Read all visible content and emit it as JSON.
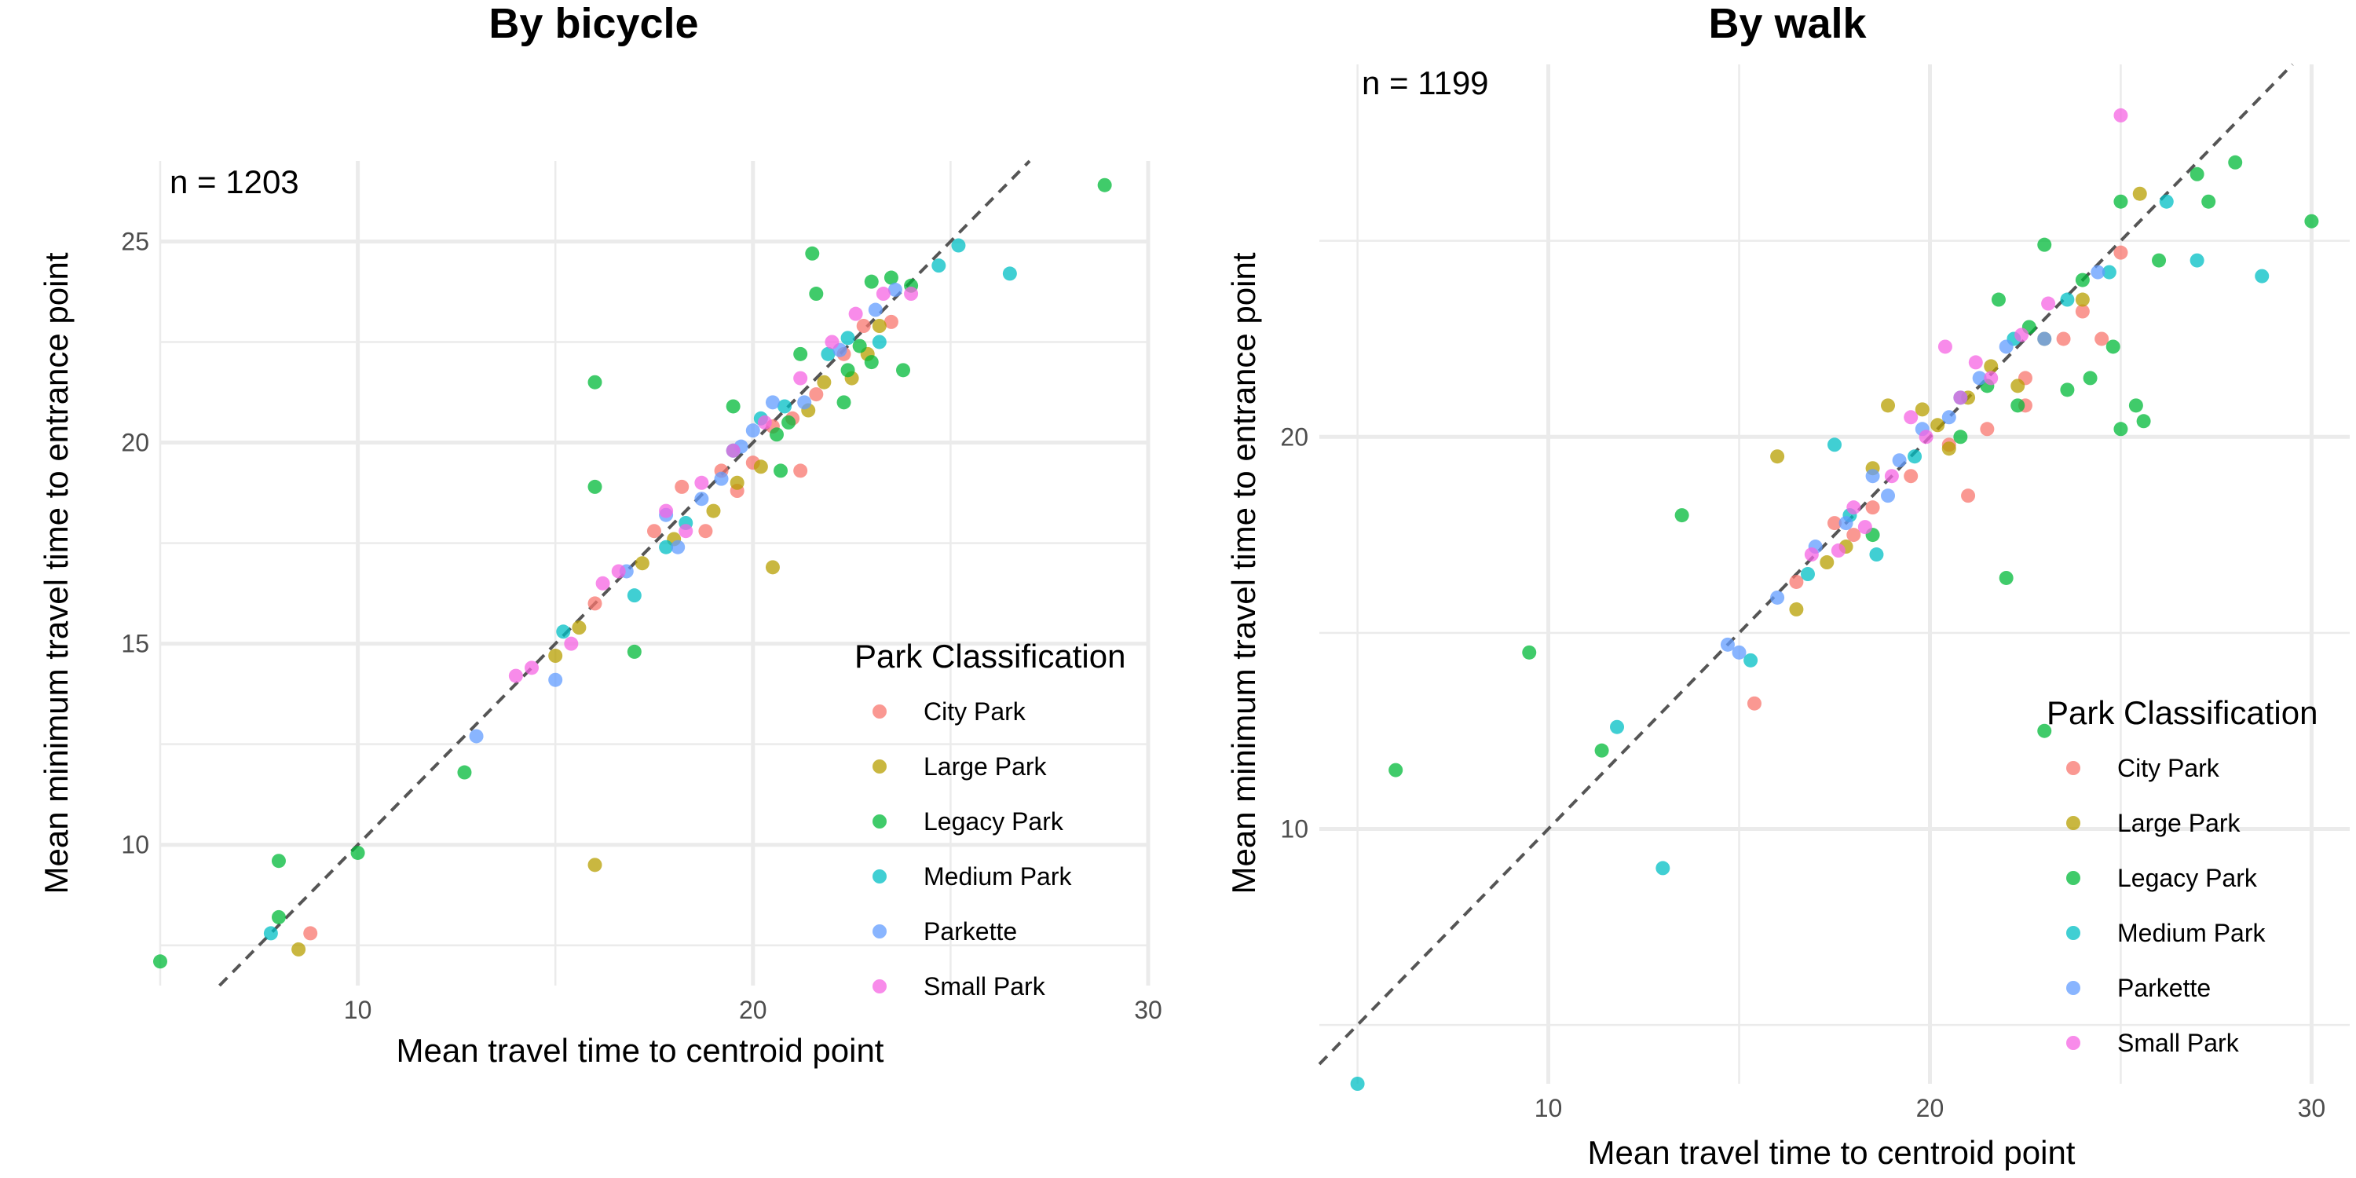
{
  "chart_data": [
    {
      "type": "scatter",
      "title": "By bicycle",
      "xlabel": "Mean travel time to centroid point",
      "ylabel": "Mean minimum travel time to entrance point",
      "annotation": "n = 1203",
      "xlim": [
        5,
        30
      ],
      "ylim": [
        6.5,
        27
      ],
      "x_ticks": [
        10,
        20,
        30
      ],
      "y_ticks": [
        10,
        15,
        20,
        25
      ],
      "grid": true,
      "reference_line": "y = x (dashed)",
      "legend": {
        "title": "Park Classification",
        "placement": "right-inside",
        "entries": [
          "City Park",
          "Large Park",
          "Legacy Park",
          "Medium Park",
          "Parkette",
          "Small Park"
        ]
      },
      "series": [
        {
          "name": "City Park",
          "color": "#F8766D",
          "points": [
            [
              8.8,
              7.8
            ],
            [
              17.5,
              17.8
            ],
            [
              18.2,
              18.9
            ],
            [
              19.2,
              19.3
            ],
            [
              20.0,
              19.5
            ],
            [
              20.5,
              20.4
            ],
            [
              21.0,
              20.6
            ],
            [
              21.6,
              21.2
            ],
            [
              22.3,
              22.2
            ],
            [
              22.8,
              22.9
            ],
            [
              18.8,
              17.8
            ],
            [
              21.2,
              19.3
            ],
            [
              16.0,
              16.0
            ],
            [
              23.5,
              23.0
            ],
            [
              19.6,
              18.8
            ]
          ]
        },
        {
          "name": "Large Park",
          "color": "#B79F00",
          "points": [
            [
              8.5,
              7.4
            ],
            [
              15.0,
              14.7
            ],
            [
              16.0,
              9.5
            ],
            [
              20.5,
              16.9
            ],
            [
              18.0,
              17.6
            ],
            [
              19.0,
              18.3
            ],
            [
              20.2,
              19.4
            ],
            [
              21.4,
              20.8
            ],
            [
              22.5,
              21.6
            ],
            [
              23.2,
              22.9
            ],
            [
              17.2,
              17.0
            ],
            [
              21.8,
              21.5
            ],
            [
              15.6,
              15.4
            ],
            [
              19.6,
              19.0
            ],
            [
              22.9,
              22.2
            ]
          ]
        },
        {
          "name": "Legacy Park",
          "color": "#00BA38",
          "points": [
            [
              5.0,
              7.1
            ],
            [
              8.0,
              9.6
            ],
            [
              8.0,
              8.2
            ],
            [
              10.0,
              9.8
            ],
            [
              12.7,
              11.8
            ],
            [
              16.0,
              21.5
            ],
            [
              16.0,
              18.9
            ],
            [
              17.0,
              14.8
            ],
            [
              21.5,
              24.7
            ],
            [
              21.6,
              23.7
            ],
            [
              23.0,
              24.0
            ],
            [
              23.5,
              24.1
            ],
            [
              24.0,
              23.9
            ],
            [
              28.9,
              26.4
            ],
            [
              23.8,
              21.8
            ],
            [
              22.4,
              21.8
            ],
            [
              20.9,
              20.5
            ],
            [
              19.5,
              20.9
            ],
            [
              20.7,
              19.3
            ],
            [
              22.3,
              21.0
            ],
            [
              23.0,
              22.0
            ],
            [
              21.2,
              22.2
            ],
            [
              22.7,
              22.4
            ],
            [
              20.6,
              20.2
            ]
          ]
        },
        {
          "name": "Medium Park",
          "color": "#00BFC4",
          "points": [
            [
              7.8,
              7.8
            ],
            [
              15.2,
              15.3
            ],
            [
              17.0,
              16.2
            ],
            [
              18.3,
              18.0
            ],
            [
              19.5,
              19.8
            ],
            [
              20.8,
              20.9
            ],
            [
              21.9,
              22.2
            ],
            [
              23.2,
              22.5
            ],
            [
              24.7,
              24.4
            ],
            [
              25.2,
              24.9
            ],
            [
              26.5,
              24.2
            ],
            [
              17.8,
              17.4
            ],
            [
              20.2,
              20.6
            ],
            [
              22.4,
              22.6
            ]
          ]
        },
        {
          "name": "Parkette",
          "color": "#619CFF",
          "points": [
            [
              13.0,
              12.7
            ],
            [
              15.0,
              14.1
            ],
            [
              16.8,
              16.8
            ],
            [
              17.8,
              18.2
            ],
            [
              18.7,
              18.6
            ],
            [
              19.7,
              19.9
            ],
            [
              20.0,
              20.3
            ],
            [
              20.5,
              21.0
            ],
            [
              21.3,
              21.0
            ],
            [
              22.2,
              22.3
            ],
            [
              23.1,
              23.3
            ],
            [
              23.6,
              23.8
            ],
            [
              19.2,
              19.1
            ],
            [
              18.1,
              17.4
            ]
          ]
        },
        {
          "name": "Small Park",
          "color": "#F564E3",
          "points": [
            [
              14.0,
              14.2
            ],
            [
              14.4,
              14.4
            ],
            [
              15.4,
              15.0
            ],
            [
              16.2,
              16.5
            ],
            [
              16.6,
              16.8
            ],
            [
              17.8,
              18.3
            ],
            [
              18.7,
              19.0
            ],
            [
              19.5,
              19.8
            ],
            [
              20.3,
              20.5
            ],
            [
              21.2,
              21.6
            ],
            [
              22.0,
              22.5
            ],
            [
              22.6,
              23.2
            ],
            [
              23.3,
              23.7
            ],
            [
              24.0,
              23.7
            ],
            [
              18.3,
              17.8
            ]
          ]
        }
      ]
    },
    {
      "type": "scatter",
      "title": "By walk",
      "xlabel": "Mean travel time to centroid point",
      "ylabel": "Mean minimum travel time to entrance point",
      "annotation": "n = 1199",
      "xlim": [
        4,
        31
      ],
      "ylim": [
        3.5,
        29.5
      ],
      "x_ticks": [
        10,
        20,
        30
      ],
      "y_ticks": [
        10,
        20
      ],
      "grid": true,
      "reference_line": "y = x (dashed)",
      "legend": {
        "title": "Park Classification",
        "placement": "right-inside",
        "entries": [
          "City Park",
          "Large Park",
          "Legacy Park",
          "Medium Park",
          "Parkette",
          "Small Park"
        ]
      },
      "series": [
        {
          "name": "City Park",
          "color": "#F8766D",
          "points": [
            [
              15.4,
              13.2
            ],
            [
              16.5,
              16.3
            ],
            [
              17.5,
              17.8
            ],
            [
              18.5,
              18.2
            ],
            [
              19.5,
              19.0
            ],
            [
              20.5,
              19.8
            ],
            [
              21.5,
              20.2
            ],
            [
              22.5,
              21.5
            ],
            [
              23.5,
              22.5
            ],
            [
              24.5,
              22.5
            ],
            [
              25.0,
              24.7
            ],
            [
              21.0,
              18.5
            ],
            [
              22.5,
              20.8
            ],
            [
              18.0,
              17.5
            ],
            [
              24.0,
              23.2
            ]
          ]
        },
        {
          "name": "Large Park",
          "color": "#B79F00",
          "points": [
            [
              16.0,
              19.5
            ],
            [
              16.5,
              15.6
            ],
            [
              17.8,
              17.2
            ],
            [
              18.9,
              20.8
            ],
            [
              19.8,
              20.7
            ],
            [
              20.5,
              19.7
            ],
            [
              21.0,
              21.0
            ],
            [
              21.6,
              21.8
            ],
            [
              22.3,
              21.3
            ],
            [
              23.0,
              22.5
            ],
            [
              24.0,
              23.5
            ],
            [
              25.5,
              26.2
            ],
            [
              18.5,
              19.2
            ],
            [
              20.2,
              20.3
            ],
            [
              17.3,
              16.8
            ]
          ]
        },
        {
          "name": "Legacy Park",
          "color": "#00BA38",
          "points": [
            [
              6.0,
              11.5
            ],
            [
              9.5,
              14.5
            ],
            [
              11.4,
              12.0
            ],
            [
              13.5,
              18.0
            ],
            [
              18.5,
              17.5
            ],
            [
              22.0,
              16.4
            ],
            [
              23.0,
              12.5
            ],
            [
              23.0,
              24.9
            ],
            [
              25.0,
              26.0
            ],
            [
              25.0,
              20.2
            ],
            [
              25.6,
              20.4
            ],
            [
              25.4,
              20.8
            ],
            [
              27.0,
              26.7
            ],
            [
              27.3,
              26.0
            ],
            [
              28.0,
              27.0
            ],
            [
              30.0,
              25.5
            ],
            [
              24.0,
              24.0
            ],
            [
              26.0,
              24.5
            ],
            [
              23.6,
              21.2
            ],
            [
              22.3,
              20.8
            ],
            [
              24.2,
              21.5
            ],
            [
              21.5,
              21.3
            ],
            [
              20.8,
              20.0
            ],
            [
              22.6,
              22.8
            ],
            [
              21.8,
              23.5
            ],
            [
              24.8,
              22.3
            ]
          ]
        },
        {
          "name": "Medium Park",
          "color": "#00BFC4",
          "points": [
            [
              5.0,
              3.5
            ],
            [
              11.8,
              12.6
            ],
            [
              13.0,
              9.0
            ],
            [
              15.3,
              14.3
            ],
            [
              16.8,
              16.5
            ],
            [
              17.5,
              19.8
            ],
            [
              17.9,
              18.0
            ],
            [
              18.6,
              17.0
            ],
            [
              19.6,
              19.5
            ],
            [
              20.8,
              21.0
            ],
            [
              22.2,
              22.5
            ],
            [
              23.6,
              23.5
            ],
            [
              24.7,
              24.2
            ],
            [
              26.2,
              26.0
            ],
            [
              27.0,
              24.5
            ],
            [
              28.7,
              24.1
            ]
          ]
        },
        {
          "name": "Parkette",
          "color": "#619CFF",
          "points": [
            [
              14.7,
              14.7
            ],
            [
              15.0,
              14.5
            ],
            [
              16.0,
              15.9
            ],
            [
              17.0,
              17.2
            ],
            [
              17.8,
              17.8
            ],
            [
              18.5,
              19.0
            ],
            [
              19.2,
              19.4
            ],
            [
              19.8,
              20.2
            ],
            [
              20.5,
              20.5
            ],
            [
              21.3,
              21.5
            ],
            [
              22.0,
              22.3
            ],
            [
              23.0,
              22.5
            ],
            [
              24.4,
              24.2
            ],
            [
              18.9,
              18.5
            ]
          ]
        },
        {
          "name": "Small Park",
          "color": "#F564E3",
          "points": [
            [
              16.9,
              17.0
            ],
            [
              17.6,
              17.1
            ],
            [
              18.0,
              18.2
            ],
            [
              19.0,
              19.0
            ],
            [
              19.9,
              20.0
            ],
            [
              20.4,
              22.3
            ],
            [
              21.2,
              21.9
            ],
            [
              21.6,
              21.5
            ],
            [
              22.4,
              22.6
            ],
            [
              23.1,
              23.4
            ],
            [
              25.0,
              28.2
            ],
            [
              19.5,
              20.5
            ],
            [
              20.8,
              21.0
            ],
            [
              18.3,
              17.7
            ]
          ]
        }
      ]
    }
  ]
}
